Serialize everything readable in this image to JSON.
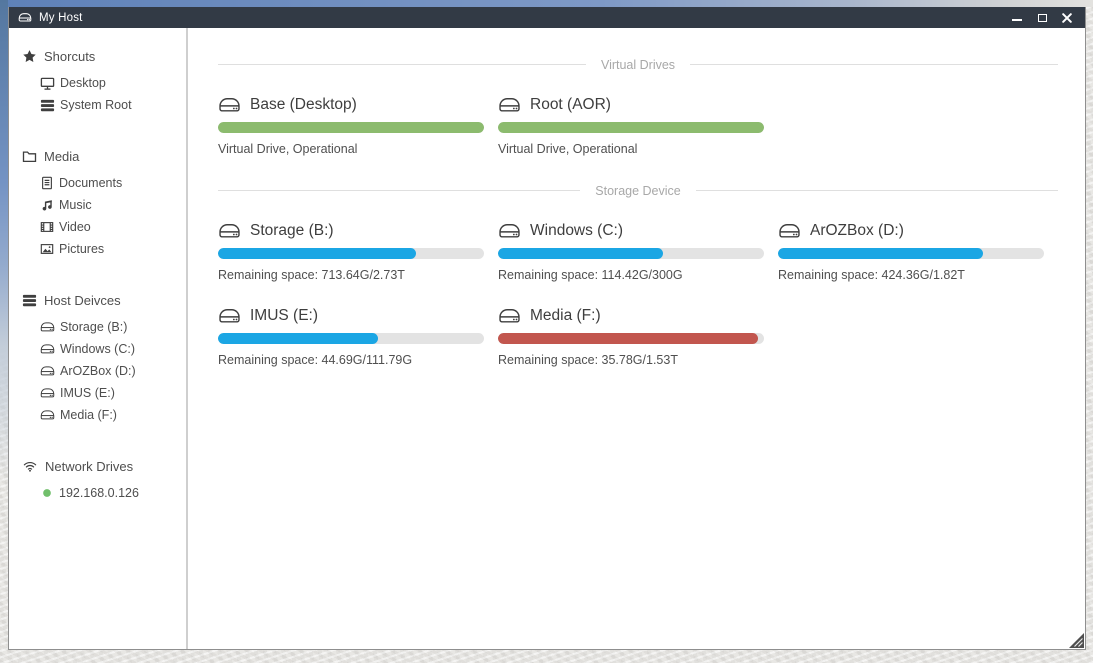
{
  "window": {
    "title": "My Host",
    "titlebar_icon": "hdd",
    "controls": [
      {
        "name": "minimize"
      },
      {
        "name": "maximize"
      },
      {
        "name": "close"
      }
    ]
  },
  "sidebar": {
    "sections": [
      {
        "label": "Shorcuts",
        "icon": "star",
        "items": [
          {
            "label": "Desktop",
            "icon": "desktop"
          },
          {
            "label": "System Root",
            "icon": "server"
          }
        ]
      },
      {
        "label": "Media",
        "icon": "folder",
        "items": [
          {
            "label": "Documents",
            "icon": "file"
          },
          {
            "label": "Music",
            "icon": "music"
          },
          {
            "label": "Video",
            "icon": "film"
          },
          {
            "label": "Pictures",
            "icon": "picture"
          }
        ]
      },
      {
        "label": "Host Deivces",
        "icon": "server",
        "items": [
          {
            "label": "Storage (B:)",
            "icon": "hdd"
          },
          {
            "label": "Windows (C:)",
            "icon": "hdd"
          },
          {
            "label": "ArOZBox (D:)",
            "icon": "hdd"
          },
          {
            "label": "IMUS (E:)",
            "icon": "hdd"
          },
          {
            "label": "Media (F:)",
            "icon": "hdd"
          }
        ]
      },
      {
        "label": "Network Drives",
        "icon": "wifi",
        "items": [
          {
            "label": "192.168.0.126",
            "icon": "status-dot",
            "status": "online",
            "status_color": "#71bf6b"
          }
        ]
      }
    ]
  },
  "main": {
    "sections": [
      {
        "heading": "Virtual Drives",
        "drives": [
          {
            "name": "Base (Desktop)",
            "caption": "Virtual Drive, Operational",
            "bar_color": "#8cbb6e",
            "used_percent": 100
          },
          {
            "name": "Root (AOR)",
            "caption": "Virtual Drive, Operational",
            "bar_color": "#8cbb6e",
            "used_percent": 100
          }
        ]
      },
      {
        "heading": "Storage Device",
        "drives": [
          {
            "name": "Storage (B:)",
            "caption": "Remaining space: 713.64G/2.73T",
            "bar_color": "#1ba6e4",
            "used_percent": 74.5
          },
          {
            "name": "Windows (C:)",
            "caption": "Remaining space: 114.42G/300G",
            "bar_color": "#1ba6e4",
            "used_percent": 61.9
          },
          {
            "name": "ArOZBox (D:)",
            "caption": "Remaining space: 424.36G/1.82T",
            "bar_color": "#1ba6e4",
            "used_percent": 77.2
          },
          {
            "name": "IMUS (E:)",
            "caption": "Remaining space: 44.69G/111.79G",
            "bar_color": "#1ba6e4",
            "used_percent": 60.0
          },
          {
            "name": "Media (F:)",
            "caption": "Remaining space: 35.78G/1.53T",
            "bar_color": "#c2564e",
            "used_percent": 97.7
          }
        ]
      }
    ]
  }
}
